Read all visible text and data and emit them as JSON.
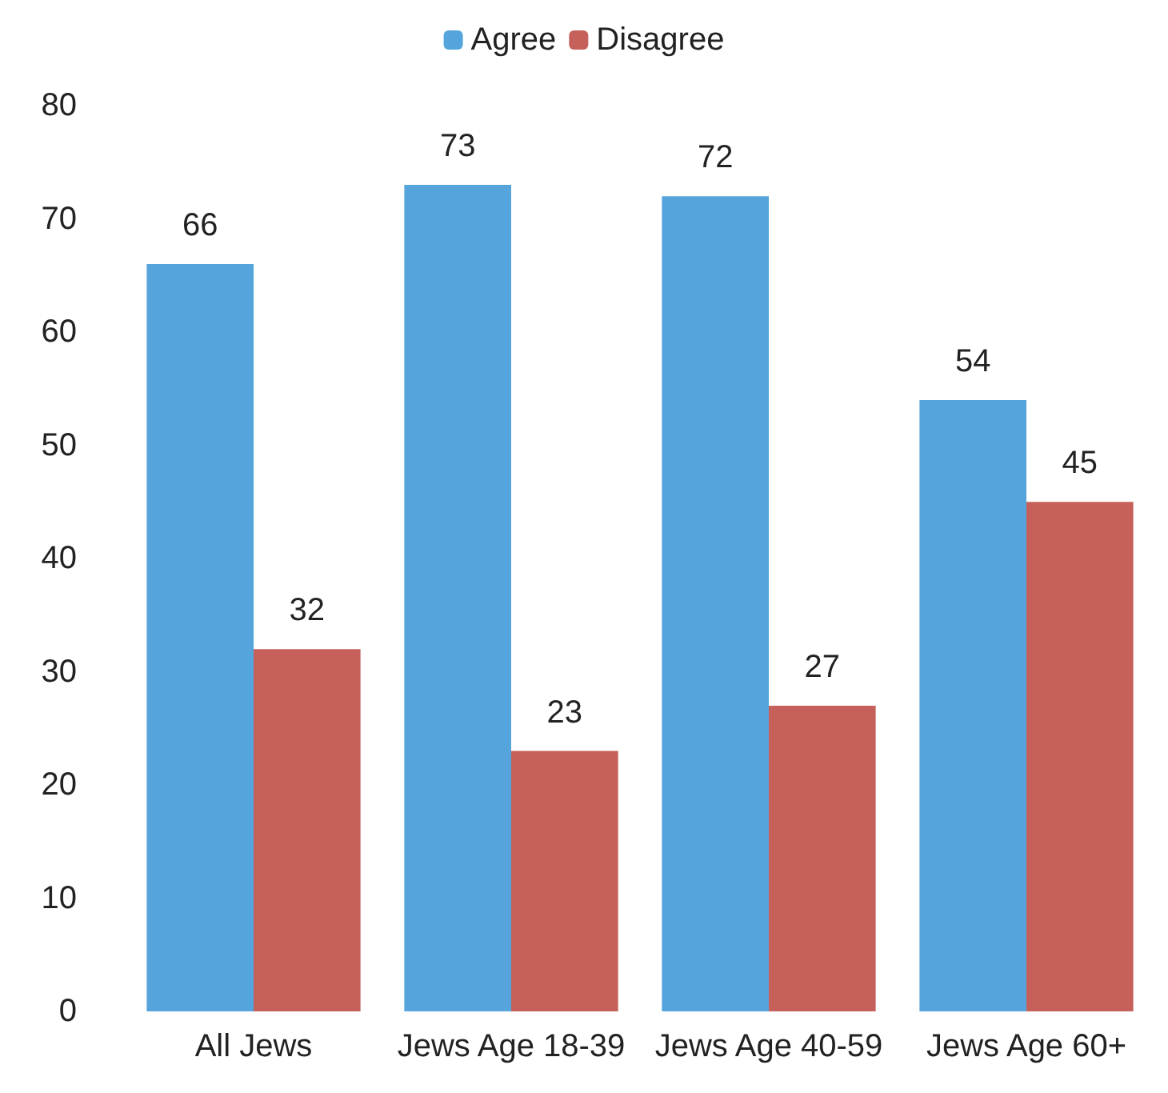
{
  "chart_data": {
    "type": "bar",
    "categories": [
      "All Jews",
      "Jews Age 18-39",
      "Jews Age 40-59",
      "Jews Age 60+"
    ],
    "series": [
      {
        "name": "Agree",
        "color": "#55a5dc",
        "values": [
          66,
          73,
          72,
          54
        ]
      },
      {
        "name": "Disagree",
        "color": "#c5605a",
        "values": [
          32,
          23,
          27,
          45
        ]
      }
    ],
    "ylim": [
      0,
      80
    ],
    "yticks": [
      0,
      10,
      20,
      30,
      40,
      50,
      60,
      70,
      80
    ],
    "grid": false,
    "legend": "top",
    "data_labels": true
  }
}
